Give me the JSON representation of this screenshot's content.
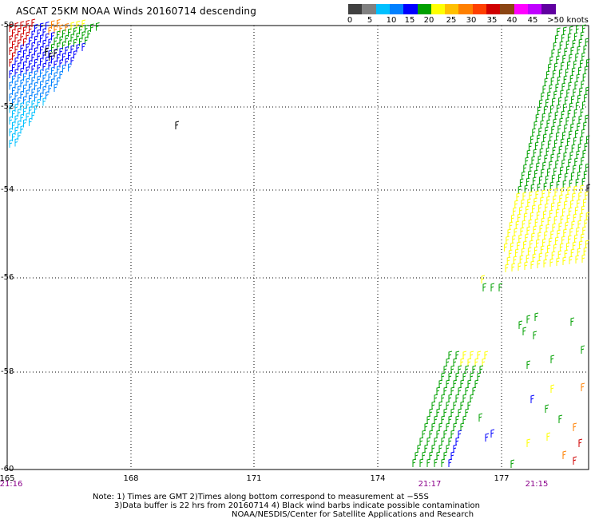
{
  "title": "ASCAT 25KM NOAA Winds 20160714 descending",
  "colorbar": {
    "colors": [
      "#404040",
      "#808080",
      "#00c0ff",
      "#0080ff",
      "#0000ff",
      "#00a000",
      "#ffff00",
      "#ffc000",
      "#ff8000",
      "#ff4000",
      "#d00000",
      "#8b4513",
      "#ff00ff",
      "#c000ff",
      "#6000a0"
    ],
    "labels": [
      "0",
      "5",
      "10",
      "15",
      "20",
      "25",
      "30",
      "35",
      "40",
      "45",
      ">50 knots"
    ]
  },
  "lat_labels": [
    "-50",
    "-52",
    "-54",
    "-56",
    "-58",
    "-60"
  ],
  "lon_labels": [
    "165",
    "168",
    "171",
    "174",
    "177"
  ],
  "time_labels": [
    "21:16",
    "21:17",
    "21:15"
  ],
  "notes": [
    "Note: 1) Times are GMT 2)Times along bottom correspond to measurement at −55S",
    "3)Data buffer is 22 hrs from 20160714 4) Black wind barbs indicate possible contamination",
    "NOAA/NESDIS/Center for Satellite Applications and Research"
  ],
  "map": {
    "lat_range": [
      -60,
      -50
    ],
    "lon_range": [
      165,
      178.2
    ],
    "grid": "dotted"
  }
}
